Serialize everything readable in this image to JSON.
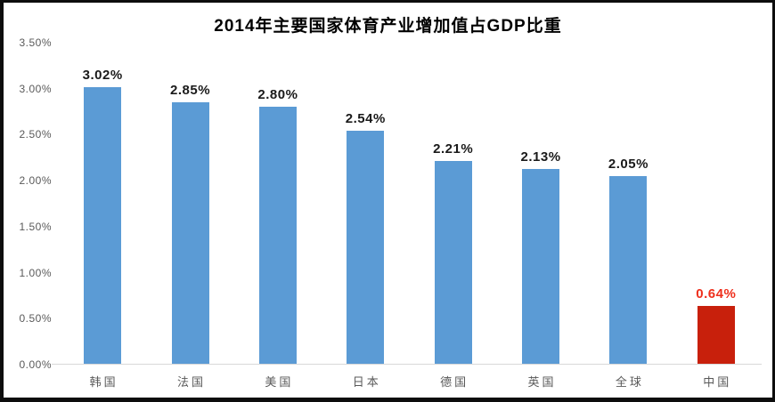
{
  "chart_data": {
    "type": "bar",
    "title": "2014年主要国家体育产业增加值占GDP比重",
    "categories": [
      "韩国",
      "法国",
      "美国",
      "日本",
      "德国",
      "英国",
      "全球",
      "中国"
    ],
    "values": [
      3.02,
      2.85,
      2.8,
      2.54,
      2.21,
      2.13,
      2.05,
      0.64
    ],
    "value_labels": [
      "3.02%",
      "2.85%",
      "2.80%",
      "2.54%",
      "2.21%",
      "2.13%",
      "2.05%",
      "0.64%"
    ],
    "y_ticks": [
      "3.50%",
      "3.00%",
      "2.50%",
      "2.00%",
      "1.50%",
      "1.00%",
      "0.50%",
      "0.00%"
    ],
    "ylim": [
      0,
      3.5
    ],
    "grid": false,
    "legend": false,
    "highlight_index": 7,
    "colors": {
      "bar_default": "#5B9BD5",
      "bar_highlight": "#C8200C",
      "value_label_default": "#1a1a1a",
      "value_label_highlight": "#EE2E1B",
      "axis_text": "#595959",
      "axis_line": "#d9d9d9",
      "frame_border": "#0d0d0d"
    }
  }
}
